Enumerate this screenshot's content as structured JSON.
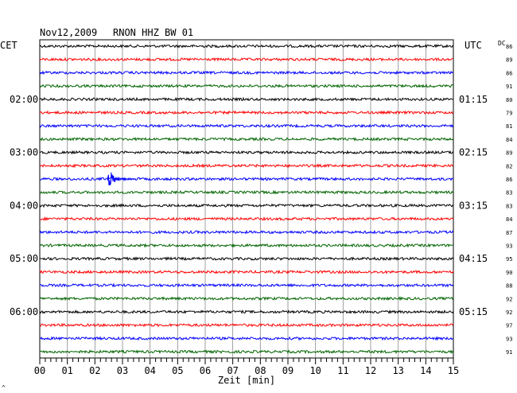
{
  "header": {
    "date": "Nov12,2009",
    "station": "RNON HHZ BW 01",
    "left_tz": "CET",
    "right_tz": "UTC",
    "dc_label": "DC"
  },
  "chart_data": {
    "type": "line",
    "xlabel": "Zeit [min]",
    "xlim": [
      0,
      15
    ],
    "x_ticks": [
      "00",
      "01",
      "02",
      "03",
      "04",
      "05",
      "06",
      "07",
      "08",
      "09",
      "10",
      "11",
      "12",
      "13",
      "14",
      "15"
    ],
    "left_hour_labels": [
      "02:00",
      "03:00",
      "04:00",
      "05:00",
      "06:00"
    ],
    "right_hour_labels": [
      "01:15",
      "02:15",
      "03:15",
      "04:15",
      "05:15"
    ],
    "trace_colors": [
      "#000000",
      "#ff0000",
      "#0000ff",
      "#006400"
    ],
    "dc_offsets": [
      86,
      89,
      86,
      91,
      80,
      79,
      81,
      84,
      89,
      82,
      86,
      83,
      83,
      84,
      87,
      93,
      95,
      90,
      88,
      92,
      92,
      97,
      93,
      91
    ],
    "events": [
      {
        "trace_index": 10,
        "start_min": 2.45,
        "end_min": 3.5,
        "peak_amplitude_px": 12
      }
    ],
    "grid": true
  },
  "footer": {
    "corner_mark": "^"
  }
}
